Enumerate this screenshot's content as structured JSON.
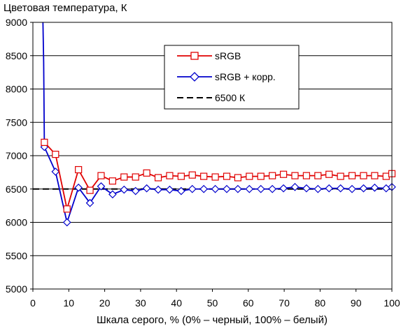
{
  "chart_data": {
    "type": "line",
    "title": "Цветовая температура, К",
    "xlabel": "Шкала серого, % (0% – черный, 100% – белый)",
    "ylabel": "",
    "xlim": [
      0,
      100
    ],
    "ylim": [
      5000,
      9000
    ],
    "x_ticks": [
      0,
      10,
      20,
      30,
      40,
      50,
      60,
      70,
      80,
      90,
      100
    ],
    "y_ticks": [
      5000,
      5500,
      6000,
      6500,
      7000,
      7500,
      8000,
      8500,
      9000
    ],
    "grid": "horizontal",
    "legend_position": "top-right",
    "series": [
      {
        "name": "sRGB",
        "color": "#e00000",
        "marker": "square",
        "x": [
          3.2,
          6.3,
          9.5,
          12.7,
          15.9,
          19.0,
          22.2,
          25.4,
          28.6,
          31.7,
          34.9,
          38.1,
          41.3,
          44.4,
          47.6,
          50.8,
          54.0,
          57.1,
          60.3,
          63.5,
          66.7,
          69.8,
          73.0,
          76.2,
          79.4,
          82.5,
          85.7,
          88.9,
          92.1,
          95.2,
          98.4,
          100
        ],
        "y": [
          7200,
          7020,
          6200,
          6790,
          6480,
          6700,
          6620,
          6680,
          6680,
          6740,
          6670,
          6700,
          6690,
          6710,
          6690,
          6680,
          6690,
          6670,
          6690,
          6690,
          6700,
          6720,
          6700,
          6700,
          6700,
          6720,
          6690,
          6700,
          6700,
          6700,
          6690,
          6730
        ]
      },
      {
        "name": "sRGB + корр.",
        "color": "#0000cc",
        "marker": "diamond",
        "x": [
          3.2,
          6.3,
          9.5,
          12.7,
          15.9,
          19.0,
          22.2,
          25.4,
          28.6,
          31.7,
          34.9,
          38.1,
          41.3,
          44.4,
          47.6,
          50.8,
          54.0,
          57.1,
          60.3,
          63.5,
          66.7,
          69.8,
          73.0,
          76.2,
          79.4,
          82.5,
          85.7,
          88.9,
          92.1,
          95.2,
          98.4,
          100
        ],
        "y": [
          7130,
          6760,
          6000,
          6520,
          6290,
          6540,
          6420,
          6490,
          6470,
          6510,
          6490,
          6490,
          6470,
          6500,
          6500,
          6500,
          6500,
          6500,
          6500,
          6500,
          6500,
          6510,
          6530,
          6510,
          6500,
          6510,
          6510,
          6500,
          6510,
          6520,
          6510,
          6530
        ]
      },
      {
        "name": "6500 К",
        "color": "#000000",
        "style": "dashed",
        "x": [
          0,
          100
        ],
        "y": [
          6500,
          6500
        ]
      }
    ],
    "blue_spike": {
      "x": [
        2.8,
        3.0,
        3.2
      ],
      "y": [
        9000,
        8400,
        7130
      ]
    }
  }
}
